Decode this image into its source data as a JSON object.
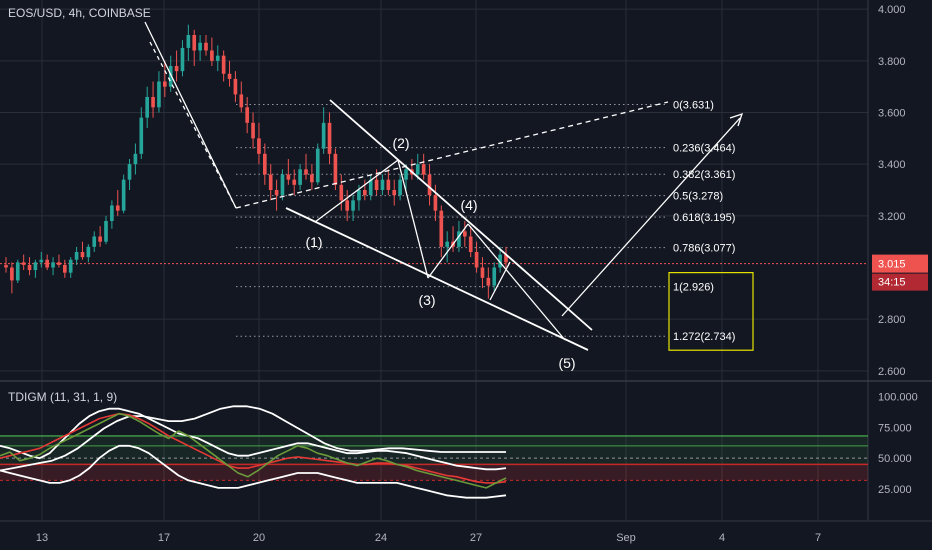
{
  "symbol_label": "EOS/USD, 4h, COINBASE",
  "indicator_label": "TDIGM (11, 31, 1, 9)",
  "colors": {
    "background": "#131722",
    "up": "#26a69a",
    "down": "#ef5350",
    "price_line": "#ef5350",
    "annotation": "#ffffff",
    "fib_box": "#e5e500",
    "grid": "#2a2e39",
    "axis_text": "#b2b5be",
    "ind_green": "#4caf50",
    "ind_red": "#e53935",
    "ind_olive": "#6a9a3a"
  },
  "chart_data": {
    "type": "candlestick",
    "y_axis_ticks": [
      "4.000",
      "3.800",
      "3.600",
      "3.400",
      "3.200",
      "2.800",
      "2.600"
    ],
    "ylim": [
      2.58,
      4.02
    ],
    "x_axis_ticks": [
      "13",
      "17",
      "20",
      "24",
      "27",
      "Sep",
      "4",
      "7"
    ],
    "current_price": "3.015",
    "countdown": "34:15",
    "fib_levels": [
      {
        "label": "0(3.631)",
        "value": 3.631
      },
      {
        "label": "0.236(3.464)",
        "value": 3.464
      },
      {
        "label": "0.382(3.361)",
        "value": 3.361
      },
      {
        "label": "0.5(3.278)",
        "value": 3.278
      },
      {
        "label": "0.618(3.195)",
        "value": 3.195
      },
      {
        "label": "0.786(3.077)",
        "value": 3.077
      },
      {
        "label": "1(2.926)",
        "value": 2.926
      },
      {
        "label": "1.272(2.734)",
        "value": 2.734
      }
    ],
    "wave_labels": [
      "(1)",
      "(2)",
      "(3)",
      "(4)",
      "(5)"
    ],
    "candles": [
      [
        3.01,
        3.04,
        2.98,
        3.0
      ],
      [
        3.0,
        3.02,
        2.9,
        2.95
      ],
      [
        2.95,
        3.03,
        2.94,
        3.02
      ],
      [
        3.02,
        3.05,
        2.99,
        3.01
      ],
      [
        3.01,
        3.04,
        2.97,
        2.99
      ],
      [
        2.99,
        3.03,
        2.96,
        3.02
      ],
      [
        3.02,
        3.06,
        3.0,
        3.03
      ],
      [
        3.03,
        3.05,
        2.99,
        3.0
      ],
      [
        3.0,
        3.04,
        2.97,
        3.02
      ],
      [
        3.02,
        3.05,
        3.0,
        3.01
      ],
      [
        3.01,
        3.03,
        2.96,
        2.98
      ],
      [
        2.98,
        3.04,
        2.96,
        3.03
      ],
      [
        3.03,
        3.08,
        3.01,
        3.06
      ],
      [
        3.06,
        3.1,
        3.03,
        3.04
      ],
      [
        3.04,
        3.09,
        3.02,
        3.08
      ],
      [
        3.08,
        3.14,
        3.06,
        3.12
      ],
      [
        3.12,
        3.16,
        3.08,
        3.1
      ],
      [
        3.1,
        3.2,
        3.09,
        3.18
      ],
      [
        3.18,
        3.26,
        3.15,
        3.24
      ],
      [
        3.24,
        3.3,
        3.2,
        3.22
      ],
      [
        3.22,
        3.36,
        3.21,
        3.34
      ],
      [
        3.34,
        3.42,
        3.3,
        3.4
      ],
      [
        3.4,
        3.48,
        3.36,
        3.44
      ],
      [
        3.44,
        3.62,
        3.42,
        3.58
      ],
      [
        3.58,
        3.7,
        3.54,
        3.66
      ],
      [
        3.66,
        3.72,
        3.58,
        3.62
      ],
      [
        3.62,
        3.76,
        3.6,
        3.72
      ],
      [
        3.72,
        3.8,
        3.66,
        3.7
      ],
      [
        3.7,
        3.82,
        3.68,
        3.78
      ],
      [
        3.78,
        3.84,
        3.72,
        3.76
      ],
      [
        3.76,
        3.88,
        3.74,
        3.85
      ],
      [
        3.85,
        3.94,
        3.8,
        3.9
      ],
      [
        3.9,
        3.92,
        3.78,
        3.84
      ],
      [
        3.84,
        3.9,
        3.8,
        3.87
      ],
      [
        3.87,
        3.9,
        3.82,
        3.84
      ],
      [
        3.84,
        3.89,
        3.78,
        3.8
      ],
      [
        3.8,
        3.86,
        3.76,
        3.82
      ],
      [
        3.82,
        3.84,
        3.72,
        3.75
      ],
      [
        3.75,
        3.8,
        3.7,
        3.73
      ],
      [
        3.73,
        3.76,
        3.64,
        3.67
      ],
      [
        3.67,
        3.72,
        3.6,
        3.62
      ],
      [
        3.62,
        3.66,
        3.52,
        3.56
      ],
      [
        3.56,
        3.6,
        3.46,
        3.5
      ],
      [
        3.5,
        3.56,
        3.4,
        3.44
      ],
      [
        3.44,
        3.48,
        3.32,
        3.36
      ],
      [
        3.36,
        3.4,
        3.26,
        3.3
      ],
      [
        3.3,
        3.34,
        3.22,
        3.28
      ],
      [
        3.28,
        3.38,
        3.26,
        3.36
      ],
      [
        3.36,
        3.42,
        3.32,
        3.34
      ],
      [
        3.34,
        3.38,
        3.28,
        3.32
      ],
      [
        3.32,
        3.4,
        3.3,
        3.38
      ],
      [
        3.38,
        3.44,
        3.34,
        3.36
      ],
      [
        3.36,
        3.4,
        3.3,
        3.33
      ],
      [
        3.33,
        3.48,
        3.32,
        3.46
      ],
      [
        3.46,
        3.62,
        3.44,
        3.56
      ],
      [
        3.56,
        3.6,
        3.4,
        3.44
      ],
      [
        3.44,
        3.46,
        3.3,
        3.32
      ],
      [
        3.32,
        3.36,
        3.22,
        3.26
      ],
      [
        3.26,
        3.3,
        3.18,
        3.22
      ],
      [
        3.22,
        3.28,
        3.18,
        3.26
      ],
      [
        3.26,
        3.32,
        3.22,
        3.3
      ],
      [
        3.3,
        3.34,
        3.26,
        3.28
      ],
      [
        3.28,
        3.36,
        3.26,
        3.34
      ],
      [
        3.34,
        3.38,
        3.28,
        3.3
      ],
      [
        3.3,
        3.36,
        3.28,
        3.34
      ],
      [
        3.34,
        3.38,
        3.28,
        3.3
      ],
      [
        3.3,
        3.34,
        3.24,
        3.28
      ],
      [
        3.28,
        3.36,
        3.26,
        3.34
      ],
      [
        3.34,
        3.4,
        3.3,
        3.38
      ],
      [
        3.38,
        3.42,
        3.34,
        3.36
      ],
      [
        3.36,
        3.44,
        3.34,
        3.4
      ],
      [
        3.4,
        3.44,
        3.34,
        3.36
      ],
      [
        3.36,
        3.4,
        3.24,
        3.28
      ],
      [
        3.28,
        3.32,
        3.18,
        3.22
      ],
      [
        3.22,
        3.24,
        3.04,
        3.08
      ],
      [
        3.08,
        3.14,
        3.02,
        3.1
      ],
      [
        3.1,
        3.16,
        3.06,
        3.08
      ],
      [
        3.08,
        3.18,
        3.06,
        3.14
      ],
      [
        3.14,
        3.18,
        3.08,
        3.12
      ],
      [
        3.12,
        3.16,
        3.04,
        3.06
      ],
      [
        3.06,
        3.1,
        2.98,
        3.0
      ],
      [
        3.0,
        3.04,
        2.92,
        2.96
      ],
      [
        2.96,
        3.0,
        2.88,
        2.93
      ],
      [
        2.93,
        3.02,
        2.91,
        3.0
      ],
      [
        3.0,
        3.08,
        2.98,
        3.05
      ],
      [
        3.05,
        3.08,
        3.0,
        3.02
      ]
    ],
    "indicator": {
      "ticks": [
        "100.000",
        "75.000",
        "50.000",
        "25.000"
      ],
      "ylim": [
        0,
        110
      ],
      "upper_band": 68,
      "mid_band": 45,
      "lower_band": 32,
      "rsi": [
        52,
        55,
        48,
        50,
        53,
        58,
        62,
        66,
        70,
        74,
        78,
        82,
        86,
        84,
        80,
        75,
        70,
        66,
        72,
        68,
        62,
        56,
        50,
        44,
        38,
        35,
        40,
        46,
        52,
        56,
        60,
        58,
        54,
        52,
        49,
        46,
        44,
        47,
        50,
        48,
        45,
        43,
        40,
        38,
        36,
        34,
        32,
        30,
        28,
        26,
        30,
        34
      ],
      "signal": [
        50,
        52,
        54,
        56,
        58,
        62,
        66,
        70,
        74,
        78,
        82,
        84,
        86,
        85,
        82,
        78,
        73,
        68,
        64,
        60,
        56,
        52,
        48,
        44,
        42,
        42,
        44,
        46,
        48,
        50,
        51,
        50,
        49,
        48,
        47,
        46,
        45,
        45,
        46,
        46,
        45,
        44,
        42,
        40,
        38,
        36,
        35,
        33,
        31,
        30,
        30,
        31
      ],
      "bb_top": [
        60,
        58,
        55,
        52,
        50,
        54,
        62,
        70,
        78,
        84,
        88,
        90,
        90,
        88,
        86,
        82,
        78,
        74,
        70,
        68,
        66,
        62,
        58,
        54,
        52,
        52,
        54,
        56,
        58,
        60,
        62,
        62,
        60,
        58,
        56,
        54,
        54,
        55,
        56,
        56,
        55,
        54,
        52,
        50,
        48,
        46,
        44,
        43,
        42,
        41,
        41,
        42
      ],
      "bb_bottom": [
        40,
        38,
        36,
        34,
        32,
        30,
        30,
        32,
        36,
        42,
        50,
        56,
        60,
        60,
        58,
        54,
        48,
        42,
        36,
        32,
        30,
        28,
        26,
        26,
        26,
        28,
        30,
        32,
        34,
        36,
        38,
        38,
        38,
        36,
        34,
        32,
        30,
        30,
        30,
        30,
        30,
        28,
        26,
        24,
        22,
        20,
        19,
        18,
        18,
        18,
        19,
        20
      ],
      "white_long": [
        40,
        42,
        44,
        46,
        48,
        52,
        58,
        66,
        74,
        80,
        84,
        84,
        82,
        80,
        80,
        82,
        86,
        90,
        92,
        92,
        90,
        86,
        80,
        74,
        68,
        62,
        58,
        56,
        56,
        57,
        58,
        58,
        57,
        56,
        55,
        55,
        55,
        55,
        55,
        55
      ]
    }
  }
}
